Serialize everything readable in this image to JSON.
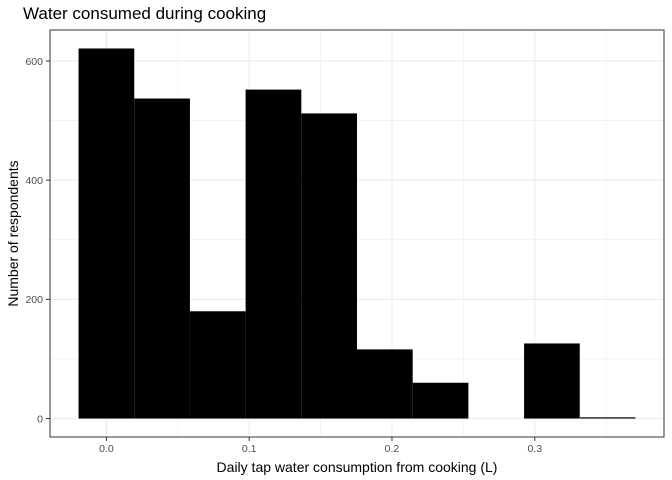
{
  "chart_data": {
    "type": "bar",
    "subtype": "histogram",
    "title": "Water consumed during cooking",
    "xlabel": "Daily tap water consumption from cooking (L)",
    "ylabel": "Number of respondents",
    "bins": [
      {
        "x0": -0.0195,
        "x1": 0.0195,
        "count": 621
      },
      {
        "x0": 0.0195,
        "x1": 0.0585,
        "count": 537
      },
      {
        "x0": 0.0585,
        "x1": 0.0975,
        "count": 180
      },
      {
        "x0": 0.0975,
        "x1": 0.1365,
        "count": 552
      },
      {
        "x0": 0.1365,
        "x1": 0.1755,
        "count": 512
      },
      {
        "x0": 0.1755,
        "x1": 0.2145,
        "count": 116
      },
      {
        "x0": 0.2145,
        "x1": 0.2535,
        "count": 60
      },
      {
        "x0": 0.2535,
        "x1": 0.2925,
        "count": 0
      },
      {
        "x0": 0.2925,
        "x1": 0.3315,
        "count": 126
      },
      {
        "x0": 0.3315,
        "x1": 0.3705,
        "count": 2
      }
    ],
    "xticks": [
      0.0,
      0.1,
      0.2,
      0.3
    ],
    "xtick_labels": [
      "0.0",
      "0.1",
      "0.2",
      "0.3"
    ],
    "yticks": [
      0,
      200,
      400,
      600
    ],
    "ytick_labels": [
      "0",
      "200",
      "400",
      "600"
    ],
    "xlim": [
      -0.0395,
      0.3905
    ],
    "ylim": [
      -31,
      652
    ],
    "grid": true,
    "bar_color": "#000000",
    "grid_color": "#ebebeb",
    "border_color": "#333333"
  }
}
